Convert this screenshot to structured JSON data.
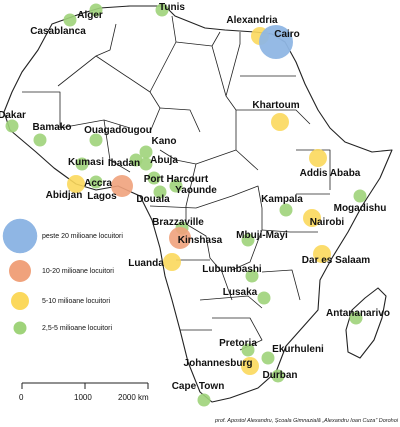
{
  "legend": {
    "items": [
      {
        "label": "peste 20 milioane locuitori",
        "color": "#8fb6e4",
        "size": "xl"
      },
      {
        "label": "10-20 milioane locuitori",
        "color": "#f0a27c",
        "size": "l"
      },
      {
        "label": "5-10 milioane locuitori",
        "color": "#fbd85c",
        "size": "m"
      },
      {
        "label": "2,5-5 milioane locuitori",
        "color": "#9fd37a",
        "size": "s"
      }
    ]
  },
  "scale": {
    "ticks": [
      "0",
      "1000",
      "2000 km"
    ]
  },
  "credit": "prof. Apostol Alexandru, Școala Gimnazială „Alexandru Ioan Cuza” Dorohoi",
  "cities": [
    {
      "name": "Alger",
      "cls": "s"
    },
    {
      "name": "Tunis",
      "cls": "s"
    },
    {
      "name": "Casablanca",
      "cls": "s"
    },
    {
      "name": "Alexandria",
      "cls": "m"
    },
    {
      "name": "Cairo",
      "cls": "xl"
    },
    {
      "name": "Dakar",
      "cls": "s"
    },
    {
      "name": "Bamako",
      "cls": "s"
    },
    {
      "name": "Ouagadougou",
      "cls": "s"
    },
    {
      "name": "Khartoum",
      "cls": "m"
    },
    {
      "name": "Kano",
      "cls": "s"
    },
    {
      "name": "Abuja",
      "cls": "s"
    },
    {
      "name": "Kumasi",
      "cls": "s"
    },
    {
      "name": "Ibadan",
      "cls": "s"
    },
    {
      "name": "Addis Ababa",
      "cls": "m"
    },
    {
      "name": "Accra",
      "cls": "s"
    },
    {
      "name": "Abidjan",
      "cls": "m"
    },
    {
      "name": "Lagos",
      "cls": "l"
    },
    {
      "name": "Port Harcourt",
      "cls": "s"
    },
    {
      "name": "Yaounde",
      "cls": "s"
    },
    {
      "name": "Douala",
      "cls": "s"
    },
    {
      "name": "Kampala",
      "cls": "s"
    },
    {
      "name": "Mogadishu",
      "cls": "s"
    },
    {
      "name": "Nairobi",
      "cls": "m"
    },
    {
      "name": "Brazzaville",
      "cls": "s"
    },
    {
      "name": "Kinshasa",
      "cls": "l"
    },
    {
      "name": "Mbuji-Mayi",
      "cls": "s"
    },
    {
      "name": "Dar es Salaam",
      "cls": "m"
    },
    {
      "name": "Luanda",
      "cls": "m"
    },
    {
      "name": "Lubumbashi",
      "cls": "s"
    },
    {
      "name": "Lusaka",
      "cls": "s"
    },
    {
      "name": "Antananarivo",
      "cls": "s"
    },
    {
      "name": "Pretoria",
      "cls": "s"
    },
    {
      "name": "Ekurhuleni",
      "cls": "s"
    },
    {
      "name": "Johannesburg",
      "cls": "m"
    },
    {
      "name": "Durban",
      "cls": "s"
    },
    {
      "name": "Cape Town",
      "cls": "s"
    }
  ]
}
